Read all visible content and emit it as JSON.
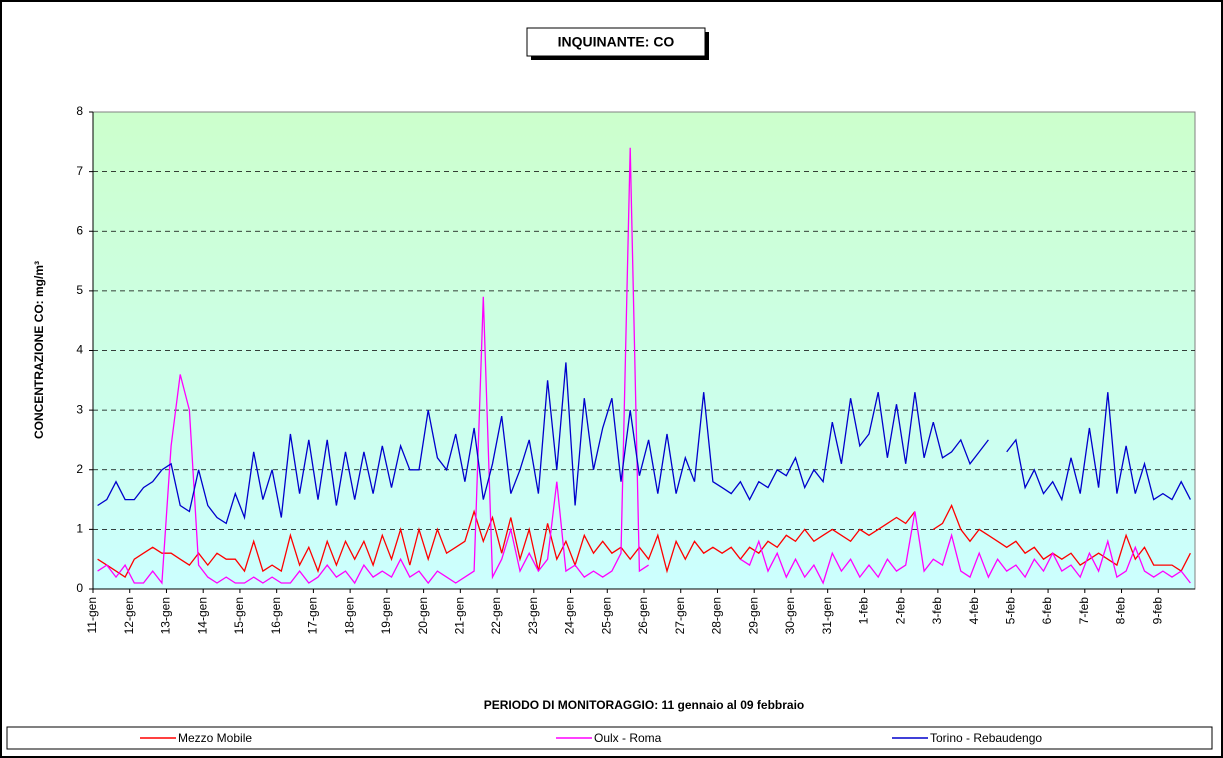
{
  "chart_data": {
    "type": "line",
    "title": "INQUINANTE: CO",
    "x_label": "PERIODO DI MONITORAGGIO: 11 gennaio al 09 febbraio",
    "y_label": "CONCENTRAZIONE CO: mg/m³",
    "ylim": [
      0,
      8
    ],
    "yticks": [
      0,
      1,
      2,
      3,
      4,
      5,
      6,
      7,
      8
    ],
    "grid": true,
    "legend": "bottom",
    "categories": [
      "11-gen",
      null,
      null,
      null,
      "12-gen",
      null,
      null,
      null,
      "13-gen",
      null,
      null,
      null,
      "14-gen",
      null,
      null,
      null,
      "15-gen",
      null,
      null,
      null,
      "16-gen",
      null,
      null,
      null,
      "17-gen",
      null,
      null,
      null,
      "18-gen",
      null,
      null,
      null,
      "19-gen",
      null,
      null,
      null,
      "20-gen",
      null,
      null,
      null,
      "21-gen",
      null,
      null,
      null,
      "22-gen",
      null,
      null,
      null,
      "23-gen",
      null,
      null,
      null,
      "24-gen",
      null,
      null,
      null,
      "25-gen",
      null,
      null,
      null,
      "26-gen",
      null,
      null,
      null,
      "27-gen",
      null,
      null,
      null,
      "28-gen",
      null,
      null,
      null,
      "29-gen",
      null,
      null,
      null,
      "30-gen",
      null,
      null,
      null,
      "31-gen",
      null,
      null,
      null,
      "1-feb",
      null,
      null,
      null,
      "2-feb",
      null,
      null,
      null,
      "3-feb",
      null,
      null,
      null,
      "4-feb",
      null,
      null,
      null,
      "5-feb",
      null,
      null,
      null,
      "6-feb",
      null,
      null,
      null,
      "7-feb",
      null,
      null,
      null,
      "8-feb",
      null,
      null,
      null,
      "9-feb",
      null,
      null,
      null
    ],
    "series": [
      {
        "name": "Mezzo Mobile",
        "color": "#ff0000",
        "values": [
          0.5,
          0.4,
          0.3,
          0.2,
          0.5,
          0.6,
          0.7,
          0.6,
          0.6,
          0.5,
          0.4,
          0.6,
          0.4,
          0.6,
          0.5,
          0.5,
          0.3,
          0.8,
          0.3,
          0.4,
          0.3,
          0.9,
          0.4,
          0.7,
          0.3,
          0.8,
          0.4,
          0.8,
          0.5,
          0.8,
          0.4,
          0.9,
          0.5,
          1.0,
          0.4,
          1.0,
          0.5,
          1.0,
          0.6,
          0.7,
          0.8,
          1.3,
          0.8,
          1.2,
          0.6,
          1.2,
          0.5,
          1.0,
          0.3,
          1.1,
          0.5,
          0.8,
          0.4,
          0.9,
          0.6,
          0.8,
          0.6,
          0.7,
          0.5,
          0.7,
          0.5,
          0.9,
          0.3,
          0.8,
          0.5,
          0.8,
          0.6,
          0.7,
          0.6,
          0.7,
          0.5,
          0.7,
          0.6,
          0.8,
          0.7,
          0.9,
          0.8,
          1.0,
          0.8,
          0.9,
          1.0,
          0.9,
          0.8,
          1.0,
          0.9,
          1.0,
          1.1,
          1.2,
          1.1,
          1.3,
          null,
          1.0,
          1.1,
          1.4,
          1.0,
          0.8,
          1.0,
          0.9,
          0.8,
          0.7,
          0.8,
          0.6,
          0.7,
          0.5,
          0.6,
          0.5,
          0.6,
          0.4,
          0.5,
          0.6,
          0.5,
          0.4,
          0.9,
          0.5,
          0.7,
          0.4,
          0.4,
          0.4,
          0.3,
          0.6
        ]
      },
      {
        "name": "Oulx - Roma",
        "color": "#ff00ff",
        "values": [
          0.3,
          0.4,
          0.2,
          0.4,
          0.1,
          0.1,
          0.3,
          0.1,
          2.4,
          3.6,
          3.0,
          0.4,
          0.2,
          0.1,
          0.2,
          0.1,
          0.1,
          0.2,
          0.1,
          0.2,
          0.1,
          0.1,
          0.3,
          0.1,
          0.2,
          0.4,
          0.2,
          0.3,
          0.1,
          0.4,
          0.2,
          0.3,
          0.2,
          0.5,
          0.2,
          0.3,
          0.1,
          0.3,
          0.2,
          0.1,
          0.2,
          0.3,
          4.9,
          0.2,
          0.5,
          1.0,
          0.3,
          0.6,
          0.3,
          0.5,
          1.8,
          0.3,
          0.4,
          0.2,
          0.3,
          0.2,
          0.3,
          0.6,
          7.4,
          0.3,
          0.4,
          null,
          null,
          null,
          null,
          null,
          null,
          null,
          null,
          null,
          0.5,
          0.4,
          0.8,
          0.3,
          0.6,
          0.2,
          0.5,
          0.2,
          0.4,
          0.1,
          0.6,
          0.3,
          0.5,
          0.2,
          0.4,
          0.2,
          0.5,
          0.3,
          0.4,
          1.3,
          0.3,
          0.5,
          0.4,
          0.9,
          0.3,
          0.2,
          0.6,
          0.2,
          0.5,
          0.3,
          0.4,
          0.2,
          0.5,
          0.3,
          0.6,
          0.3,
          0.4,
          0.2,
          0.6,
          0.3,
          0.8,
          0.2,
          0.3,
          0.7,
          0.3,
          0.2,
          0.3,
          0.2,
          0.3,
          0.1
        ]
      },
      {
        "name": "Torino - Rebaudengo",
        "color": "#0000cc",
        "values": [
          1.4,
          1.5,
          1.8,
          1.5,
          1.5,
          1.7,
          1.8,
          2.0,
          2.1,
          1.4,
          1.3,
          2.0,
          1.4,
          1.2,
          1.1,
          1.6,
          1.2,
          2.3,
          1.5,
          2.0,
          1.2,
          2.6,
          1.6,
          2.5,
          1.5,
          2.5,
          1.4,
          2.3,
          1.5,
          2.3,
          1.6,
          2.4,
          1.7,
          2.4,
          2.0,
          2.0,
          3.0,
          2.2,
          2.0,
          2.6,
          1.8,
          2.7,
          1.5,
          2.1,
          2.9,
          1.6,
          2.0,
          2.5,
          1.6,
          3.5,
          2.0,
          3.8,
          1.4,
          3.2,
          2.0,
          2.7,
          3.2,
          1.8,
          3.0,
          1.9,
          2.5,
          1.6,
          2.6,
          1.6,
          2.2,
          1.8,
          3.3,
          1.8,
          1.7,
          1.6,
          1.8,
          1.5,
          1.8,
          1.7,
          2.0,
          1.9,
          2.2,
          1.7,
          2.0,
          1.8,
          2.8,
          2.1,
          3.2,
          2.4,
          2.6,
          3.3,
          2.2,
          3.1,
          2.1,
          3.3,
          2.2,
          2.8,
          2.2,
          2.3,
          2.5,
          2.1,
          2.3,
          2.5,
          null,
          2.3,
          2.5,
          1.7,
          2.0,
          1.6,
          1.8,
          1.5,
          2.2,
          1.6,
          2.7,
          1.7,
          3.3,
          1.6,
          2.4,
          1.6,
          2.1,
          1.5,
          1.6,
          1.5,
          1.8,
          1.5
        ]
      }
    ]
  }
}
